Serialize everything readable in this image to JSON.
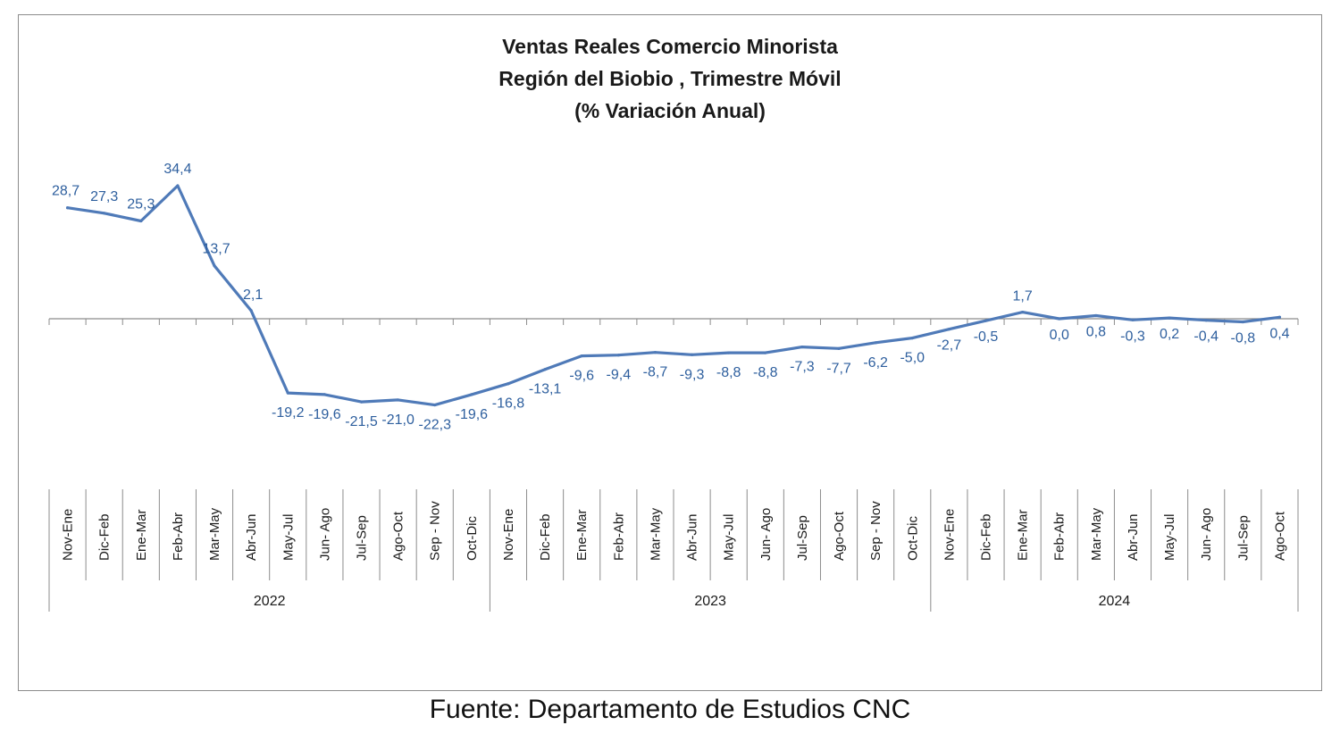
{
  "source": "Fuente: Departamento de Estudios CNC",
  "chart_data": {
    "type": "line",
    "title_lines": [
      "Ventas Reales Comercio Minorista",
      "Región del Biobio , Trimestre Móvil",
      "(% Variación Anual)"
    ],
    "xlabel": "",
    "ylabel": "",
    "ylim": [
      -45,
      45
    ],
    "grid": false,
    "legend": "none",
    "line_color": "#4f7ab8",
    "label_color": "#2e5f9e",
    "categories": [
      "Nov-Ene",
      "Dic-Feb",
      "Ene-Mar",
      "Feb-Abr",
      "Mar-May",
      "Abr-Jun",
      "May-Jul",
      "Jun- Ago",
      "Jul-Sep",
      "Ago-Oct",
      "Sep - Nov",
      "Oct-Dic",
      "Nov-Ene",
      "Dic-Feb",
      "Ene-Mar",
      "Feb-Abr",
      "Mar-May",
      "Abr-Jun",
      "May-Jul",
      "Jun- Ago",
      "Jul-Sep",
      "Ago-Oct",
      "Sep - Nov",
      "Oct-Dic",
      "Nov-Ene",
      "Dic-Feb",
      "Ene-Mar",
      "Feb-Abr",
      "Mar-May",
      "Abr-Jun",
      "May-Jul",
      "Jun- Ago",
      "Jul-Sep",
      "Ago-Oct"
    ],
    "years": [
      {
        "label": "2022",
        "start": 0,
        "end": 11
      },
      {
        "label": "2023",
        "start": 12,
        "end": 23
      },
      {
        "label": "2024",
        "start": 24,
        "end": 33
      }
    ],
    "values": [
      28.7,
      27.3,
      25.3,
      34.4,
      13.7,
      2.1,
      -19.2,
      -19.6,
      -21.5,
      -21.0,
      -22.3,
      -19.6,
      -16.8,
      -13.1,
      -9.6,
      -9.4,
      -8.7,
      -9.3,
      -8.8,
      -8.8,
      -7.3,
      -7.7,
      -6.2,
      -5.0,
      -2.7,
      -0.5,
      1.7,
      0.0,
      0.8,
      -0.3,
      0.2,
      -0.4,
      -0.8,
      0.4
    ],
    "data_labels": [
      "28,7",
      "27,3",
      "25,3",
      "34,4",
      "13,7",
      "2,1",
      "-19,2",
      "-19,6",
      "-21,5",
      "-21,0",
      "-22,3",
      "-19,6",
      "-16,8",
      "-13,1",
      "-9,6",
      "-9,4",
      "-8,7",
      "-9,3",
      "-8,8",
      "-8,8",
      "-7,3",
      "-7,7",
      "-6,2",
      "-5,0",
      "-2,7",
      "-0,5",
      "1,7",
      "0,0",
      "0,8",
      "-0,3",
      "0,2",
      "-0,4",
      "-0,8",
      "0,4"
    ]
  }
}
